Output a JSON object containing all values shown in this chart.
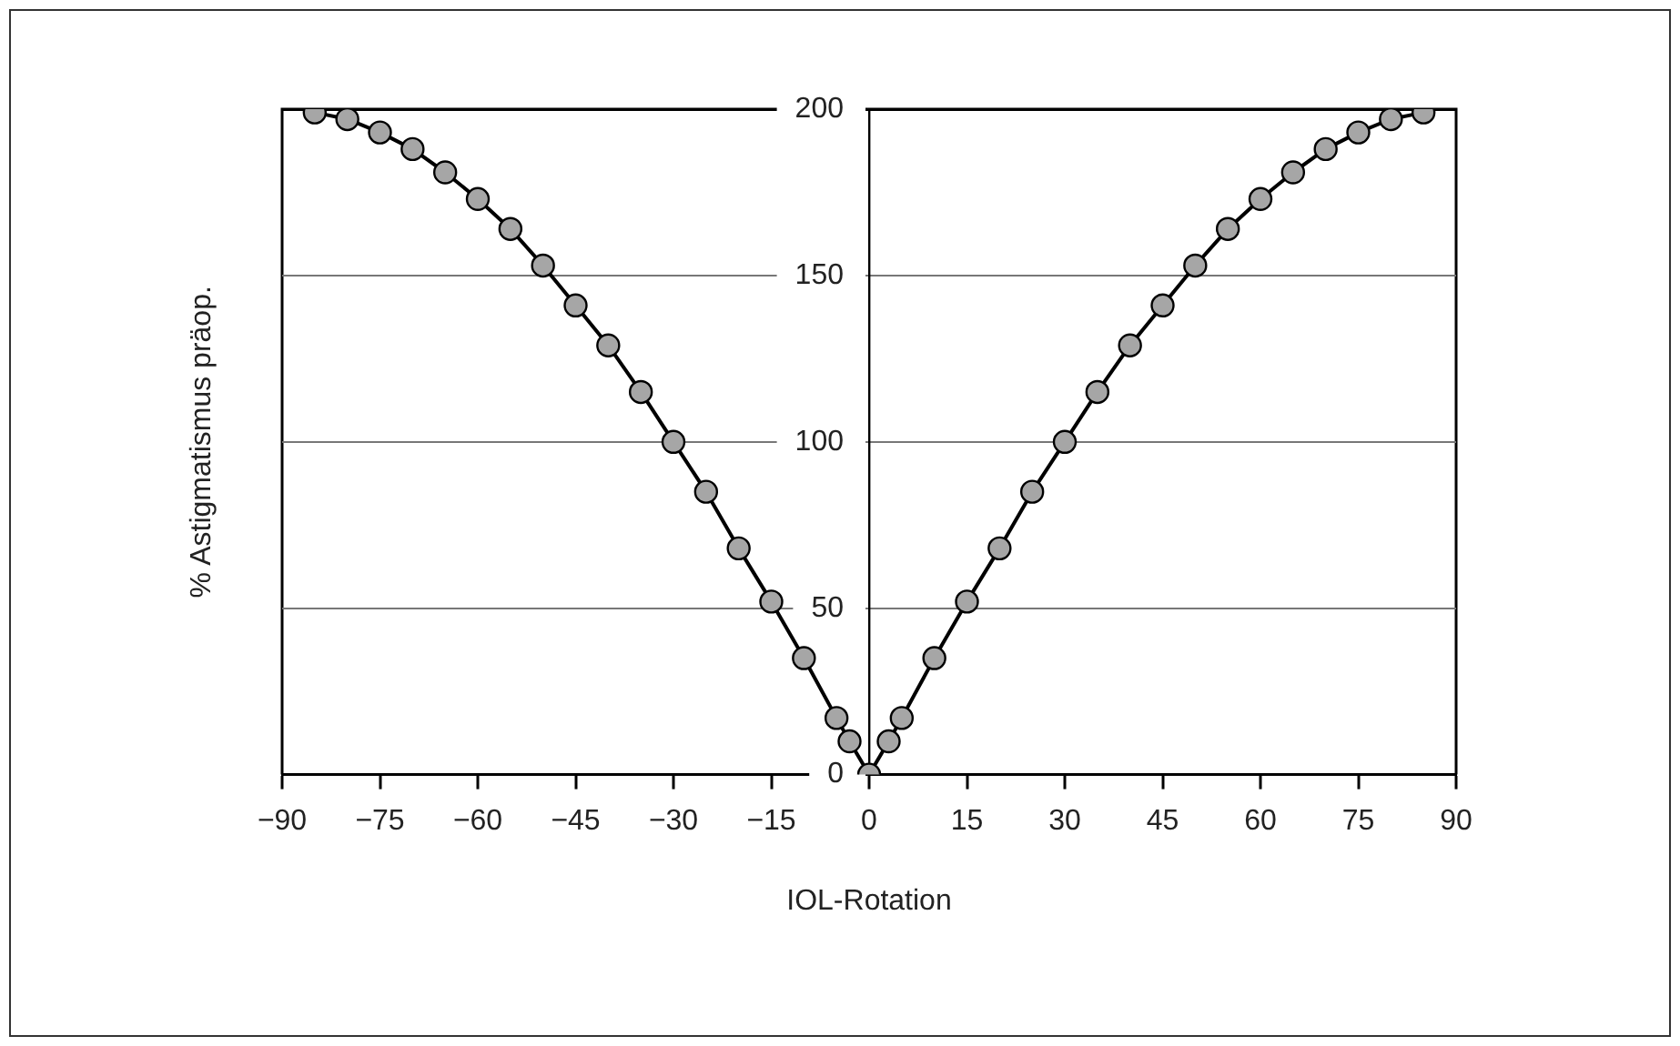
{
  "chart_data": {
    "type": "line",
    "xlabel": "IOL-Rotation",
    "ylabel": "% Astigmatismus präop.",
    "x": [
      -85,
      -80,
      -75,
      -70,
      -65,
      -60,
      -55,
      -50,
      -45,
      -40,
      -35,
      -30,
      -25,
      -20,
      -15,
      -10,
      -5,
      -3,
      0,
      3,
      5,
      10,
      15,
      20,
      25,
      30,
      35,
      40,
      45,
      50,
      55,
      60,
      65,
      70,
      75,
      80,
      85
    ],
    "series": [
      {
        "color": "#000000",
        "values": [
          199,
          197,
          193,
          188,
          181,
          173,
          164,
          153,
          141,
          129,
          115,
          100,
          85,
          68,
          52,
          35,
          17,
          10,
          0,
          10,
          17,
          35,
          52,
          68,
          85,
          100,
          115,
          129,
          141,
          153,
          164,
          173,
          181,
          188,
          193,
          197,
          199
        ]
      }
    ],
    "xlim": [
      -90,
      90
    ],
    "xticks": [
      {
        "value": -90,
        "label": "−90"
      },
      {
        "value": -75,
        "label": "−75"
      },
      {
        "value": -60,
        "label": "−60"
      },
      {
        "value": -45,
        "label": "−45"
      },
      {
        "value": -30,
        "label": "−30"
      },
      {
        "value": -15,
        "label": "−15"
      },
      0,
      15,
      30,
      45,
      60,
      75,
      90
    ],
    "ylim": [
      0,
      200
    ],
    "yticks": [
      0,
      50,
      100,
      150,
      200
    ],
    "grid": "y",
    "legend": false,
    "marker": "circle",
    "line_style": "solid"
  }
}
